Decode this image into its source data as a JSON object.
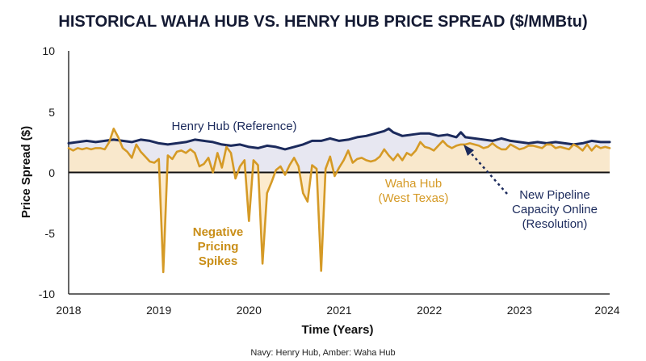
{
  "chart_data": {
    "type": "line",
    "title": "HISTORICAL WAHA HUB VS. HENRY HUB PRICE SPREAD ($/MMBtu)",
    "xlabel": "Time (Years)",
    "ylabel": "Price Spread ($)",
    "xlim": [
      2018,
      2024
    ],
    "ylim": [
      -10,
      10
    ],
    "x_ticks": [
      "2018",
      "2019",
      "2020",
      "2021",
      "2022",
      "2023",
      "2024"
    ],
    "y_ticks": [
      "10",
      "5",
      "0",
      "-5",
      "-10"
    ],
    "grid": false,
    "note": "Navy: Henry Hub, Amber: Waha Hub",
    "colors": {
      "henry": "#1b2a5c",
      "waha": "#d59a26",
      "henry_fill": "#e7e7f1",
      "waha_fill": "#fbe8c6"
    },
    "series": [
      {
        "name": "Henry Hub (Reference)",
        "color": "#1b2a5c",
        "x": [
          2018.0,
          2018.1,
          2018.2,
          2018.3,
          2018.4,
          2018.5,
          2018.6,
          2018.7,
          2018.8,
          2018.9,
          2019.0,
          2019.1,
          2019.2,
          2019.3,
          2019.4,
          2019.5,
          2019.6,
          2019.7,
          2019.8,
          2019.9,
          2020.0,
          2020.1,
          2020.2,
          2020.3,
          2020.4,
          2020.5,
          2020.6,
          2020.7,
          2020.8,
          2020.9,
          2021.0,
          2021.1,
          2021.2,
          2021.3,
          2021.4,
          2021.5,
          2021.55,
          2021.6,
          2021.7,
          2021.8,
          2021.9,
          2022.0,
          2022.1,
          2022.2,
          2022.3,
          2022.35,
          2022.4,
          2022.5,
          2022.6,
          2022.7,
          2022.8,
          2022.9,
          2023.0,
          2023.1,
          2023.2,
          2023.3,
          2023.4,
          2023.5,
          2023.6,
          2023.7,
          2023.8,
          2023.9,
          2024.0
        ],
        "y": [
          2.4,
          2.5,
          2.6,
          2.5,
          2.6,
          2.7,
          2.6,
          2.5,
          2.7,
          2.6,
          2.4,
          2.3,
          2.4,
          2.5,
          2.7,
          2.6,
          2.5,
          2.3,
          2.2,
          2.3,
          2.1,
          2.0,
          2.2,
          2.1,
          1.9,
          2.1,
          2.3,
          2.6,
          2.6,
          2.8,
          2.6,
          2.7,
          2.9,
          3.0,
          3.2,
          3.4,
          3.6,
          3.3,
          3.0,
          3.1,
          3.2,
          3.2,
          3.0,
          3.1,
          2.9,
          3.3,
          2.9,
          2.8,
          2.7,
          2.6,
          2.8,
          2.6,
          2.5,
          2.4,
          2.5,
          2.4,
          2.5,
          2.4,
          2.3,
          2.4,
          2.6,
          2.5,
          2.5
        ]
      },
      {
        "name": "Waha Hub (West Texas)",
        "color": "#d59a26",
        "x": [
          2018.0,
          2018.05,
          2018.1,
          2018.15,
          2018.2,
          2018.25,
          2018.3,
          2018.35,
          2018.4,
          2018.45,
          2018.5,
          2018.55,
          2018.6,
          2018.65,
          2018.7,
          2018.75,
          2018.8,
          2018.85,
          2018.9,
          2018.95,
          2019.0,
          2019.05,
          2019.1,
          2019.15,
          2019.2,
          2019.25,
          2019.3,
          2019.35,
          2019.4,
          2019.45,
          2019.5,
          2019.55,
          2019.6,
          2019.65,
          2019.7,
          2019.75,
          2019.8,
          2019.85,
          2019.9,
          2019.95,
          2020.0,
          2020.05,
          2020.1,
          2020.15,
          2020.2,
          2020.25,
          2020.3,
          2020.35,
          2020.4,
          2020.45,
          2020.5,
          2020.55,
          2020.6,
          2020.65,
          2020.7,
          2020.75,
          2020.8,
          2020.85,
          2020.9,
          2020.95,
          2021.0,
          2021.05,
          2021.1,
          2021.15,
          2021.2,
          2021.25,
          2021.3,
          2021.35,
          2021.4,
          2021.45,
          2021.5,
          2021.55,
          2021.6,
          2021.65,
          2021.7,
          2021.75,
          2021.8,
          2021.85,
          2021.9,
          2021.95,
          2022.0,
          2022.05,
          2022.1,
          2022.15,
          2022.2,
          2022.25,
          2022.3,
          2022.35,
          2022.4,
          2022.45,
          2022.5,
          2022.55,
          2022.6,
          2022.65,
          2022.7,
          2022.75,
          2022.8,
          2022.85,
          2022.9,
          2022.95,
          2023.0,
          2023.05,
          2023.1,
          2023.15,
          2023.2,
          2023.25,
          2023.3,
          2023.35,
          2023.4,
          2023.45,
          2023.5,
          2023.55,
          2023.6,
          2023.65,
          2023.7,
          2023.75,
          2023.8,
          2023.85,
          2023.9,
          2023.95,
          2024.0
        ],
        "y": [
          2.0,
          1.8,
          2.0,
          1.9,
          2.0,
          1.9,
          2.0,
          2.0,
          1.9,
          2.5,
          3.6,
          2.9,
          2.0,
          1.7,
          1.2,
          2.3,
          1.7,
          1.3,
          0.9,
          0.8,
          1.1,
          -8.2,
          1.4,
          1.1,
          1.7,
          1.8,
          1.6,
          1.9,
          1.6,
          0.5,
          0.7,
          1.2,
          0.0,
          1.6,
          0.4,
          2.1,
          1.6,
          -0.5,
          0.5,
          1.0,
          -4.0,
          1.0,
          0.6,
          -7.5,
          -1.7,
          -0.8,
          0.2,
          0.5,
          -0.2,
          0.6,
          1.2,
          0.5,
          -1.7,
          -2.4,
          0.6,
          0.3,
          -8.1,
          0.3,
          1.3,
          -0.3,
          0.4,
          1.0,
          1.8,
          0.8,
          1.1,
          1.2,
          1.0,
          0.9,
          1.0,
          1.3,
          1.9,
          1.4,
          1.0,
          1.5,
          1.0,
          1.6,
          1.4,
          1.8,
          2.5,
          2.1,
          2.0,
          1.8,
          2.2,
          2.6,
          2.2,
          2.0,
          2.2,
          2.3,
          2.3,
          2.4,
          2.3,
          2.2,
          2.0,
          2.1,
          2.4,
          2.1,
          1.9,
          1.9,
          2.3,
          2.1,
          1.9,
          2.0,
          2.2,
          2.2,
          2.1,
          2.0,
          2.3,
          2.3,
          2.0,
          2.1,
          2.0,
          1.9,
          2.3,
          2.1,
          1.8,
          2.3,
          1.8,
          2.2,
          2.0,
          2.1,
          2.0
        ]
      }
    ],
    "annotations": {
      "henry_label": "Henry Hub (Reference)",
      "waha_label_1": "Waha Hub",
      "waha_label_2": "(West Texas)",
      "spikes_label_1": "Negative",
      "spikes_label_2": "Pricing",
      "spikes_label_3": "Spikes",
      "pipeline_label_1": "New Pipeline",
      "pipeline_label_2": "Capacity Online",
      "pipeline_label_3": "(Resolution)"
    }
  }
}
